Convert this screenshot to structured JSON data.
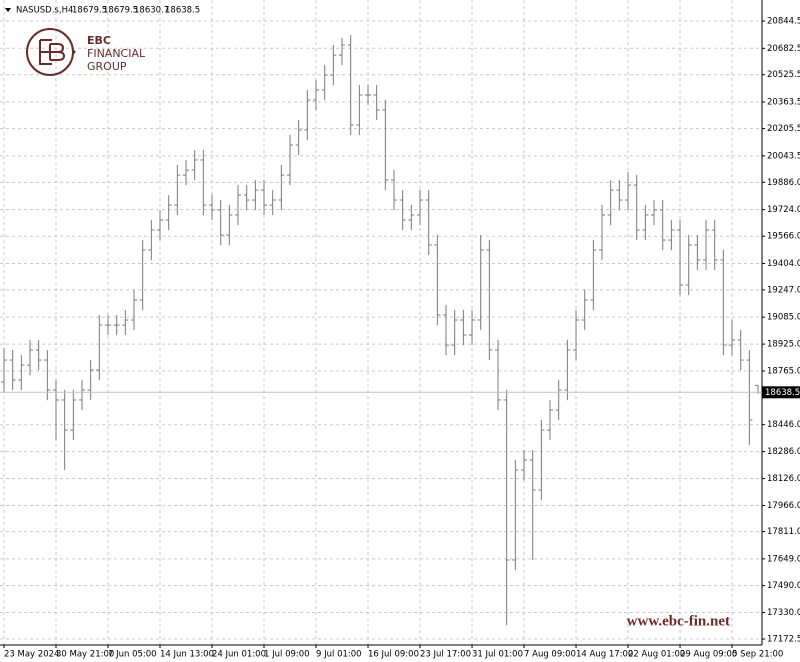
{
  "chart_data": {
    "type": "ohlc",
    "title": "NASUSD.s,H4",
    "categories": [
      "23 May 2024",
      null,
      null,
      null,
      null,
      null,
      "30 May 21:00",
      null,
      null,
      null,
      null,
      null,
      "7 Jun 05:00",
      null,
      null,
      null,
      null,
      null,
      "14 Jun 13:00",
      null,
      null,
      null,
      null,
      null,
      "24 Jun 01:00",
      null,
      null,
      null,
      null,
      null,
      "1 Jul 09:00",
      null,
      null,
      null,
      null,
      null,
      "9 Jul 01:00",
      null,
      null,
      null,
      null,
      null,
      "16 Jul 09:00",
      null,
      null,
      null,
      null,
      null,
      "23 Jul 17:00",
      null,
      null,
      null,
      null,
      null,
      "31 Jul 01:00",
      null,
      null,
      null,
      null,
      null,
      "7 Aug 09:00",
      null,
      null,
      null,
      null,
      null,
      "14 Aug 17:00",
      null,
      null,
      null,
      null,
      null,
      "22 Aug 01:00",
      null,
      null,
      null,
      null,
      null,
      "29 Aug 09:00",
      null,
      null,
      null,
      null,
      null,
      "5 Sep 21:00",
      null,
      null,
      null
    ],
    "ohlc": [
      [
        18700,
        18900,
        18640,
        18830
      ],
      [
        18830,
        18890,
        18651,
        18711
      ],
      [
        18711,
        18860,
        18651,
        18800
      ],
      [
        18800,
        18950,
        18740,
        18890
      ],
      [
        18890,
        18950,
        18770,
        18830
      ],
      [
        18830,
        18890,
        18592,
        18652
      ],
      [
        18652,
        18712,
        18355,
        18593
      ],
      [
        18593,
        18653,
        18177,
        18414
      ],
      [
        18414,
        18653,
        18354,
        18593
      ],
      [
        18593,
        18712,
        18533,
        18652
      ],
      [
        18652,
        18831,
        18592,
        18771
      ],
      [
        18771,
        19098,
        18711,
        19038
      ],
      [
        19038,
        19098,
        18978,
        19038
      ],
      [
        19038,
        19098,
        18978,
        19038
      ],
      [
        19038,
        19128,
        18978,
        19068
      ],
      [
        19068,
        19247,
        19008,
        19187
      ],
      [
        19187,
        19544,
        19127,
        19484
      ],
      [
        19484,
        19663,
        19424,
        19603
      ],
      [
        19603,
        19722,
        19543,
        19662
      ],
      [
        19662,
        19811,
        19602,
        19751
      ],
      [
        19751,
        19989,
        19691,
        19929
      ],
      [
        19929,
        20019,
        19869,
        19959
      ],
      [
        19959,
        20078,
        19899,
        20019
      ],
      [
        20019,
        20079,
        19691,
        19751
      ],
      [
        19751,
        19811,
        19662,
        19722
      ],
      [
        19722,
        19782,
        19513,
        19573
      ],
      [
        19573,
        19752,
        19513,
        19692
      ],
      [
        19692,
        19871,
        19632,
        19811
      ],
      [
        19811,
        19871,
        19721,
        19781
      ],
      [
        19781,
        19900,
        19721,
        19840
      ],
      [
        19840,
        19900,
        19691,
        19751
      ],
      [
        19751,
        19841,
        19691,
        19781
      ],
      [
        19781,
        19989,
        19721,
        19929
      ],
      [
        19929,
        20168,
        19869,
        20108
      ],
      [
        20108,
        20257,
        20048,
        20197
      ],
      [
        20197,
        20435,
        20137,
        20375
      ],
      [
        20375,
        20495,
        20315,
        20435
      ],
      [
        20435,
        20584,
        20375,
        20524
      ],
      [
        20524,
        20702,
        20464,
        20642
      ],
      [
        20642,
        20745,
        20582,
        20702
      ],
      [
        20702,
        20762,
        20167,
        20227
      ],
      [
        20227,
        20465,
        20167,
        20405
      ],
      [
        20405,
        20465,
        20345,
        20405
      ],
      [
        20405,
        20465,
        20256,
        20316
      ],
      [
        20316,
        20376,
        19840,
        19900
      ],
      [
        19900,
        19960,
        19721,
        19781
      ],
      [
        19781,
        19841,
        19602,
        19662
      ],
      [
        19662,
        19752,
        19602,
        19692
      ],
      [
        19692,
        19841,
        19632,
        19781
      ],
      [
        19781,
        19841,
        19454,
        19514
      ],
      [
        19514,
        19574,
        19038,
        19098
      ],
      [
        19098,
        19158,
        18859,
        18919
      ],
      [
        18919,
        19128,
        18859,
        19068
      ],
      [
        19068,
        19128,
        18919,
        18979
      ],
      [
        18979,
        19128,
        18919,
        19068
      ],
      [
        19068,
        19573,
        19008,
        19484
      ],
      [
        19484,
        19544,
        18830,
        18890
      ],
      [
        18890,
        18950,
        18533,
        18593
      ],
      [
        18593,
        18653,
        17256,
        17642
      ],
      [
        17642,
        18237,
        17582,
        18177
      ],
      [
        18177,
        18296,
        18117,
        18236
      ],
      [
        18236,
        18296,
        17642,
        18058
      ],
      [
        18058,
        18474,
        17998,
        18414
      ],
      [
        18414,
        18593,
        18354,
        18533
      ],
      [
        18533,
        18712,
        18473,
        18652
      ],
      [
        18652,
        18950,
        18592,
        18890
      ],
      [
        18890,
        19128,
        18830,
        19068
      ],
      [
        19068,
        19247,
        19008,
        19187
      ],
      [
        19187,
        19544,
        19127,
        19484
      ],
      [
        19484,
        19752,
        19424,
        19692
      ],
      [
        19692,
        19900,
        19632,
        19840
      ],
      [
        19840,
        19900,
        19721,
        19781
      ],
      [
        19781,
        19947,
        19721,
        19870
      ],
      [
        19870,
        19930,
        19543,
        19603
      ],
      [
        19603,
        19752,
        19543,
        19692
      ],
      [
        19692,
        19782,
        19632,
        19722
      ],
      [
        19722,
        19782,
        19483,
        19543
      ],
      [
        19543,
        19663,
        19483,
        19603
      ],
      [
        19603,
        19663,
        19216,
        19276
      ],
      [
        19276,
        19574,
        19216,
        19514
      ],
      [
        19514,
        19574,
        19365,
        19425
      ],
      [
        19425,
        19663,
        19365,
        19603
      ],
      [
        19603,
        19663,
        19365,
        19425
      ],
      [
        19425,
        19485,
        18859,
        18919
      ],
      [
        18919,
        19068,
        18859,
        18949
      ],
      [
        18949,
        19009,
        18770,
        18830
      ],
      [
        18830,
        18890,
        18325,
        18474
      ],
      [
        18679.5,
        18679.5,
        18630.7,
        18638.5
      ]
    ],
    "ylim": [
      17137,
      20922
    ],
    "yticks": [
      20844.5,
      20682.5,
      20525.5,
      20363.5,
      20205.5,
      {
        "value": 20043.5,
        "label": "20043.5"
      },
      {
        "value": 19886,
        "label": "19886.0"
      },
      {
        "value": 19724,
        "label": "19724.0"
      },
      {
        "value": 19566,
        "label": "19566.0"
      },
      {
        "value": 19404,
        "label": "19404.0"
      },
      {
        "value": 19247,
        "label": "19247.0"
      },
      {
        "value": 19085,
        "label": "19085.0"
      },
      {
        "value": 18925,
        "label": "18925.0"
      },
      {
        "value": 18765,
        "label": "18765.0"
      },
      {
        "value": 18446,
        "label": "18446.0"
      },
      {
        "value": 18286,
        "label": "18286.0"
      },
      {
        "value": 18126,
        "label": "18126.0"
      },
      {
        "value": 17966,
        "label": "17966.0"
      },
      {
        "value": 17811,
        "label": "17811.0"
      },
      {
        "value": 17649,
        "label": "17649.0"
      },
      {
        "value": 17490,
        "label": "17490.0"
      },
      {
        "value": 17330,
        "label": "17330.0"
      },
      17172.5
    ],
    "grid": true,
    "color": "#7a7a7a"
  },
  "watermark": {
    "brand": "EBC",
    "line1": "FINANCIAL",
    "line2": "GROUP",
    "url": "www.ebc-fin.net"
  }
}
